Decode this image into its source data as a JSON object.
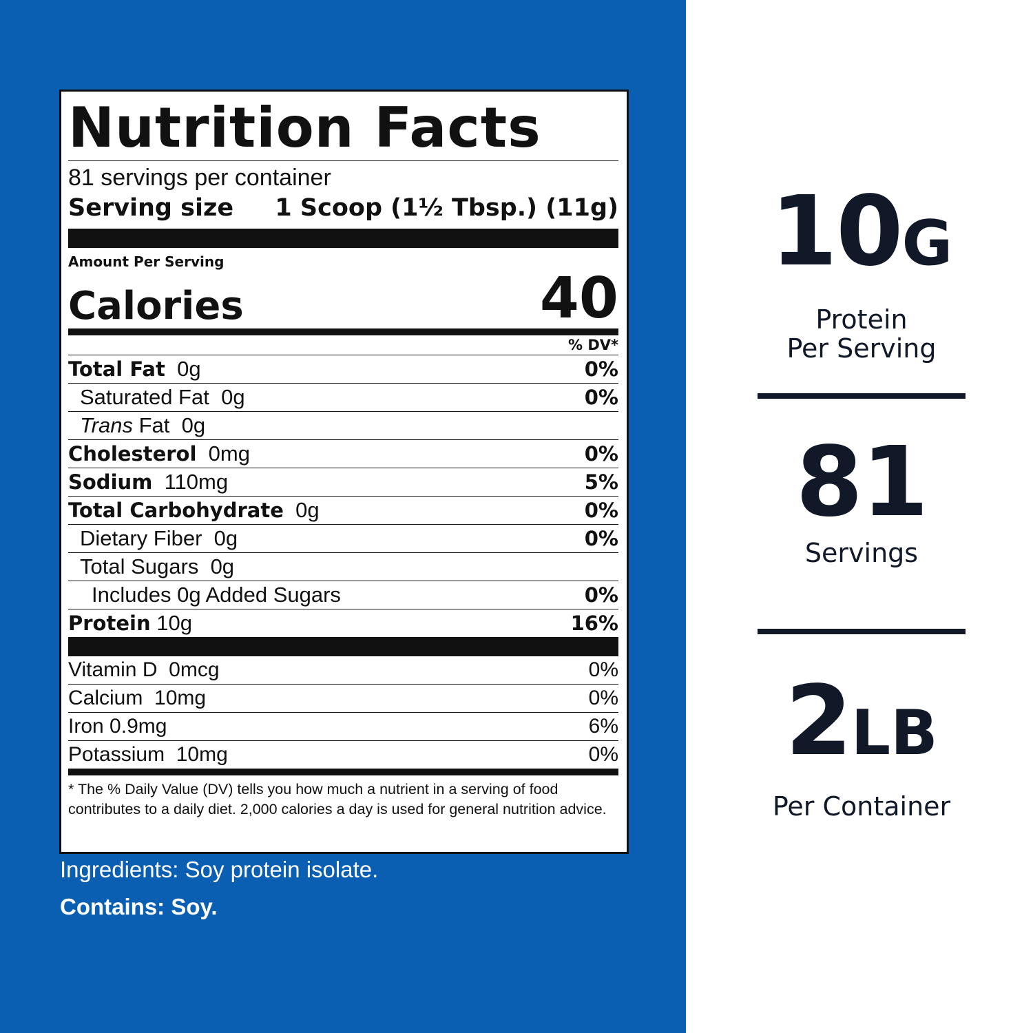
{
  "label": {
    "title": "Nutrition Facts",
    "servings_per_container": "81 servings per container",
    "serving_size_label": "Serving size",
    "serving_size_value": "1 Scoop (1½ Tbsp.) (11g)",
    "amount_per_serving": "Amount Per Serving",
    "calories_label": "Calories",
    "calories_value": "40",
    "dv_header": "% DV*",
    "nutrients": [
      {
        "name": "Total Fat",
        "amount": "0g",
        "dv": "0%"
      },
      {
        "name": "Saturated Fat",
        "amount": "0g",
        "dv": "0%"
      },
      {
        "name_italic": "Trans",
        "name": "Fat",
        "amount": "0g",
        "dv": ""
      },
      {
        "name": "Cholesterol",
        "amount": "0mg",
        "dv": "0%"
      },
      {
        "name": "Sodium",
        "amount": "110mg",
        "dv": "5%"
      },
      {
        "name": "Total Carbohydrate",
        "amount": "0g",
        "dv": "0%"
      },
      {
        "name": "Dietary Fiber",
        "amount": "0g",
        "dv": "0%"
      },
      {
        "name": "Total Sugars",
        "amount": "0g",
        "dv": ""
      },
      {
        "name": "Includes 0g Added Sugars",
        "amount": "",
        "dv": "0%"
      },
      {
        "name": "Protein",
        "amount": "10g",
        "dv": "16%"
      }
    ],
    "vitamins": [
      {
        "name": "Vitamin D",
        "amount": "0mcg",
        "dv": "0%"
      },
      {
        "name": "Calcium",
        "amount": "10mg",
        "dv": "0%"
      },
      {
        "name": "Iron",
        "amount": "0.9mg",
        "dv": "6%"
      },
      {
        "name": "Potassium",
        "amount": "10mg",
        "dv": "0%"
      }
    ],
    "footnote": "* The % Daily Value (DV) tells you how much a nutrient in a serving of food contributes to a daily diet. 2,000 calories a day is used for general nutrition advice."
  },
  "ingredients": "Ingredients: Soy protein isolate.",
  "contains": "Contains: Soy.",
  "stats": [
    {
      "value": "10",
      "unit": "G",
      "label_line1": "Protein",
      "label_line2": "Per Serving"
    },
    {
      "value": "81",
      "unit": "",
      "label_line1": "Servings",
      "label_line2": ""
    },
    {
      "value": "2",
      "unit": "LB",
      "label_line1": "Per Container",
      "label_line2": ""
    }
  ],
  "colors": {
    "panel_blue": "#0a5fb2",
    "stat_text": "#111827",
    "label_ink": "#111111"
  }
}
